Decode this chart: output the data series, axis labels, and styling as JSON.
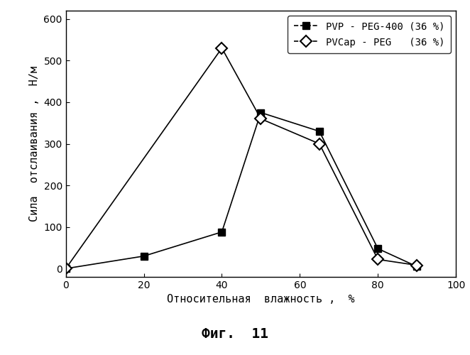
{
  "series1_label": "PVP - PEG-400 (36 %)",
  "series2_label": "PVCap - PEG   (36 %)",
  "series1_x": [
    0,
    20,
    40,
    50,
    65,
    80,
    90
  ],
  "series1_y": [
    0,
    30,
    88,
    375,
    330,
    48,
    5
  ],
  "series2_x": [
    0,
    40,
    50,
    65,
    80,
    90
  ],
  "series2_y": [
    0,
    530,
    360,
    300,
    22,
    8
  ],
  "xlabel": "Относительная  влажность ,  %",
  "ylabel": "Сила  отслаивания ,  Н/м",
  "title": "Фиг.  11",
  "xlim": [
    0,
    100
  ],
  "ylim": [
    -20,
    620
  ],
  "xticks": [
    0,
    20,
    40,
    60,
    80,
    100
  ],
  "yticks": [
    0,
    100,
    200,
    300,
    400,
    500,
    600
  ],
  "line_color": "#000000",
  "bg_color": "#ffffff"
}
